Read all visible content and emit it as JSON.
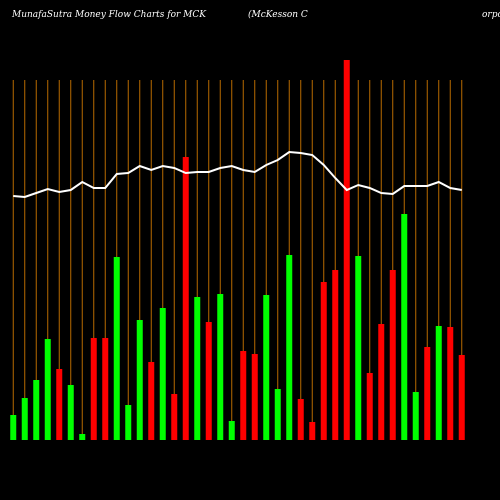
{
  "chart_data": {
    "type": "bar",
    "title": "MunafaSutra  Money Flow  Charts for MCK",
    "subtitle": "(McKesson  C",
    "annotation": "orpo",
    "ylim": [
      0,
      380
    ],
    "grid": true,
    "grid_color": "#b86a00",
    "line_color": "#ffffff",
    "categories": [
      null,
      null,
      null,
      null,
      null,
      null,
      null,
      null,
      null,
      null,
      null,
      null,
      null,
      null,
      null,
      null,
      null,
      null,
      null,
      null,
      null,
      null,
      null,
      null,
      null,
      null,
      null,
      null,
      null,
      null,
      null,
      null,
      null,
      null,
      null,
      null,
      null,
      null,
      null,
      null
    ],
    "values": [
      25,
      42,
      60,
      101,
      71,
      55,
      6,
      102,
      102,
      183,
      35,
      120,
      78,
      132,
      46,
      283,
      143,
      118,
      146,
      19,
      89,
      86,
      145,
      51,
      185,
      41,
      18,
      158,
      170,
      380,
      184,
      67,
      116,
      170,
      226,
      48,
      93,
      114,
      113,
      85
    ],
    "colors": [
      "#00ff00",
      "#00ff00",
      "#00ff00",
      "#00ff00",
      "#ff0000",
      "#00ff00",
      "#00ff00",
      "#ff0000",
      "#ff0000",
      "#00ff00",
      "#00ff00",
      "#00ff00",
      "#ff0000",
      "#00ff00",
      "#ff0000",
      "#ff0000",
      "#00ff00",
      "#ff0000",
      "#00ff00",
      "#00ff00",
      "#ff0000",
      "#ff0000",
      "#00ff00",
      "#00ff00",
      "#00ff00",
      "#ff0000",
      "#ff0000",
      "#ff0000",
      "#ff0000",
      "#ff0000",
      "#00ff00",
      "#ff0000",
      "#ff0000",
      "#ff0000",
      "#00ff00",
      "#00ff00",
      "#ff0000",
      "#00ff00",
      "#ff0000",
      "#ff0000"
    ],
    "line_values": [
      244,
      243,
      247,
      251,
      248,
      250,
      258,
      252,
      252,
      266,
      267,
      274,
      270,
      274,
      272,
      267,
      268,
      268,
      272,
      274,
      270,
      268,
      275,
      280,
      288,
      287,
      285,
      275,
      262,
      250,
      255,
      252,
      247,
      246,
      254,
      254,
      254,
      258,
      252,
      250
    ]
  }
}
